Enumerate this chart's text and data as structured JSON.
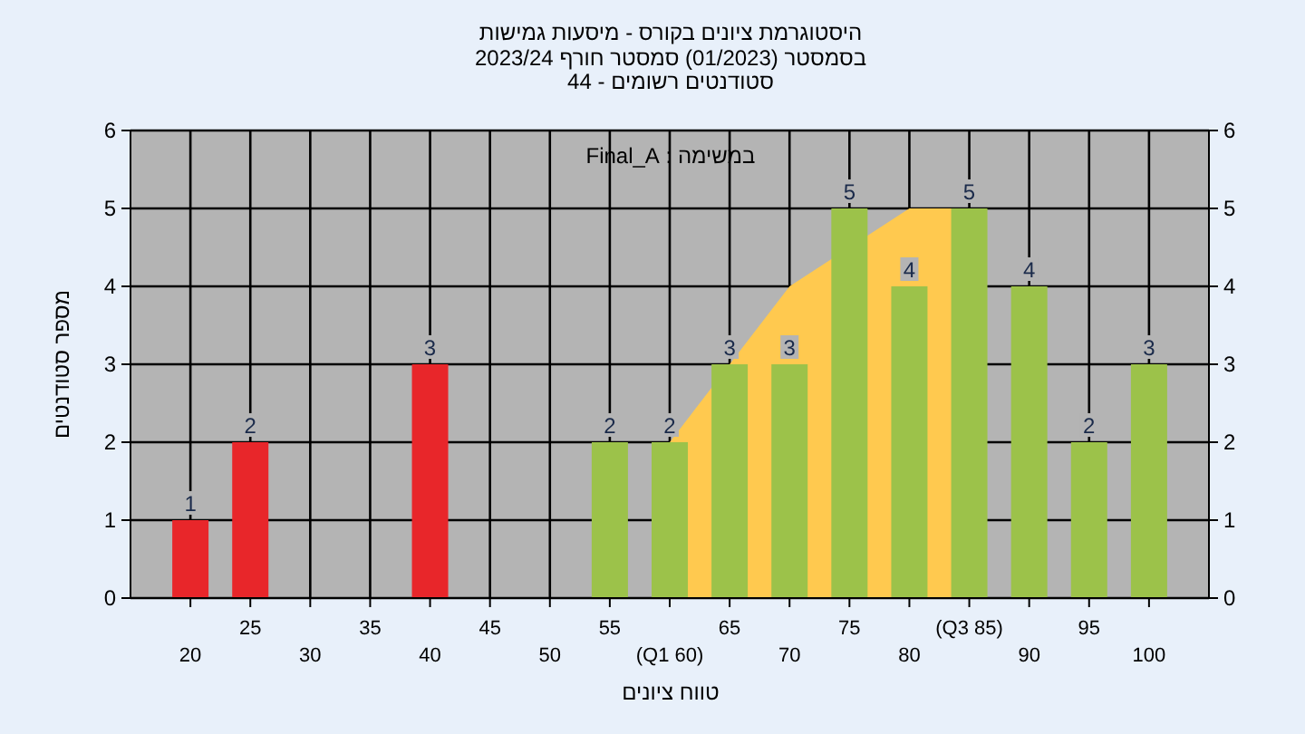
{
  "chart_data": {
    "type": "bar",
    "title": "היסטוגרמת ציונים בקורס - מיסעות גמישות",
    "subtitle": "בסמסטר  (01/2023)  סמסטר חורף 2023/24\nסטודנטים רשומים - 44",
    "xlabel": "טווח ציונים",
    "ylabel": "מספר סטודנטים",
    "annotations": [
      "במשימה : Final_A"
    ],
    "categories": [
      "20",
      "25",
      "30",
      "35",
      "40",
      "45",
      "50",
      "55",
      "(Q1 60)",
      "65",
      "70",
      "75",
      "80",
      "(Q3 85)",
      "90",
      "95",
      "100"
    ],
    "series": [
      {
        "type": "area",
        "color": "#ffc94f",
        "values": [
          null,
          null,
          null,
          null,
          null,
          null,
          null,
          null,
          2,
          3,
          4,
          null,
          5,
          5,
          null,
          null,
          null
        ]
      },
      {
        "colors": [
          "#e8262a",
          "#e8262a",
          "#e8262a",
          "#e8262a",
          "#e8262a",
          "#9cc24a",
          "#9cc24a",
          "#9cc24a",
          "#9cc24a",
          "#9cc24a",
          "#9cc24a",
          "#9cc24a",
          "#9cc24a",
          "#9cc24a",
          "#9cc24a",
          "#9cc24a",
          "#9cc24a"
        ],
        "values": [
          1,
          2,
          0,
          0,
          3,
          0,
          0,
          2,
          2,
          3,
          3,
          5,
          4,
          5,
          4,
          2,
          3
        ],
        "value_labels": [
          "1",
          "2",
          null,
          null,
          "3",
          null,
          null,
          "2",
          "2",
          "3",
          "3",
          "5",
          "4",
          "5",
          "4",
          "2",
          "3"
        ]
      }
    ],
    "ylim": [
      0,
      6
    ],
    "yticks": [
      0,
      1,
      2,
      3,
      4,
      5,
      6
    ],
    "y2lim": [
      0,
      6
    ],
    "y2ticks": [
      0,
      1,
      2,
      3,
      4,
      5,
      6
    ],
    "grid": true
  }
}
